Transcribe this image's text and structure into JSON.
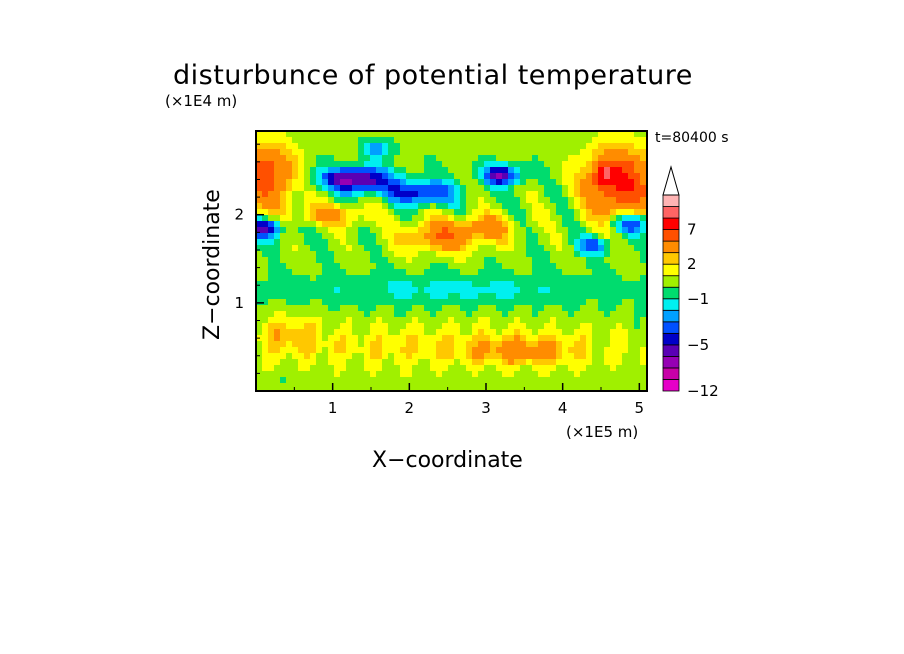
{
  "chart_data": {
    "type": "heatmap",
    "title": "disturbunce of potential temperature",
    "time_label": "t=80400 s",
    "xlabel": "X−coordinate",
    "ylabel": "Z−coordinate",
    "x_unit": "(×1E5 m)",
    "z_unit": "(×1E4 m)",
    "xlim": [
      0,
      5.1
    ],
    "zlim": [
      0,
      2.95
    ],
    "x_ticks": [
      {
        "value": 1,
        "label": "1"
      },
      {
        "value": 2,
        "label": "2"
      },
      {
        "value": 3,
        "label": "3"
      },
      {
        "value": 4,
        "label": "4"
      },
      {
        "value": 5,
        "label": "5"
      }
    ],
    "z_ticks": [
      {
        "value": 1,
        "label": "1"
      },
      {
        "value": 2,
        "label": "2"
      }
    ],
    "colorbar": {
      "levels": [
        -12,
        -10,
        -8,
        -6,
        -5,
        -4,
        -3,
        -2,
        -1,
        0,
        1,
        2,
        3,
        5,
        7,
        9,
        11
      ],
      "colors": [
        "#e600c8",
        "#c800a8",
        "#9600b4",
        "#5a00b4",
        "#0000c8",
        "#0050ff",
        "#00a0ff",
        "#00f0f0",
        "#00dc6e",
        "#a0f000",
        "#ffff00",
        "#ffc800",
        "#ff8c00",
        "#ff5000",
        "#ff0000",
        "#ff6464",
        "#ffb4b4"
      ],
      "labels": [
        {
          "value": 7,
          "label": "7"
        },
        {
          "value": 2,
          "label": "2"
        },
        {
          "value": -1,
          "label": "−1"
        },
        {
          "value": -5,
          "label": "−5"
        },
        {
          "value": -12,
          "label": "−12"
        }
      ],
      "extend": "max"
    },
    "field_features": [
      {
        "x": 0.15,
        "z": 2.45,
        "sx": 0.35,
        "sz": 0.35,
        "amp": 6
      },
      {
        "x": 4.75,
        "z": 2.35,
        "sx": 0.45,
        "sz": 0.4,
        "amp": 7
      },
      {
        "x": 4.55,
        "z": 2.45,
        "sx": 0.12,
        "sz": 0.12,
        "amp": 5
      },
      {
        "x": 1.3,
        "z": 2.4,
        "sx": 0.45,
        "sz": 0.14,
        "amp": -7
      },
      {
        "x": 0.1,
        "z": 1.85,
        "sx": 0.25,
        "sz": 0.12,
        "amp": -6
      },
      {
        "x": 2.15,
        "z": 2.25,
        "sx": 0.45,
        "sz": 0.14,
        "amp": -5
      },
      {
        "x": 3.2,
        "z": 2.45,
        "sx": 0.25,
        "sz": 0.12,
        "amp": -6
      },
      {
        "x": 4.9,
        "z": 1.9,
        "sx": 0.28,
        "sz": 0.12,
        "amp": -5
      },
      {
        "x": 4.4,
        "z": 1.65,
        "sx": 0.2,
        "sz": 0.1,
        "amp": -4
      },
      {
        "x": 1.6,
        "z": 2.75,
        "sx": 0.2,
        "sz": 0.1,
        "amp": -3
      },
      {
        "x": 1.0,
        "z": 2.0,
        "sx": 0.5,
        "sz": 0.12,
        "amp": 3
      },
      {
        "x": 2.4,
        "z": 1.75,
        "sx": 0.5,
        "sz": 0.18,
        "amp": 4
      },
      {
        "x": 3.0,
        "z": 1.85,
        "sx": 0.4,
        "sz": 0.15,
        "amp": 3
      },
      {
        "x": 2.6,
        "z": 1.15,
        "sx": 2.5,
        "sz": 0.18,
        "amp": -1.6
      },
      {
        "x": 2.5,
        "z": 0.5,
        "sx": 2.5,
        "sz": 0.25,
        "amp": 1.7
      },
      {
        "x": 0.4,
        "z": 0.65,
        "sx": 0.4,
        "sz": 0.2,
        "amp": 2
      },
      {
        "x": 3.5,
        "z": 0.45,
        "sx": 0.6,
        "sz": 0.15,
        "amp": 2.5
      }
    ]
  }
}
